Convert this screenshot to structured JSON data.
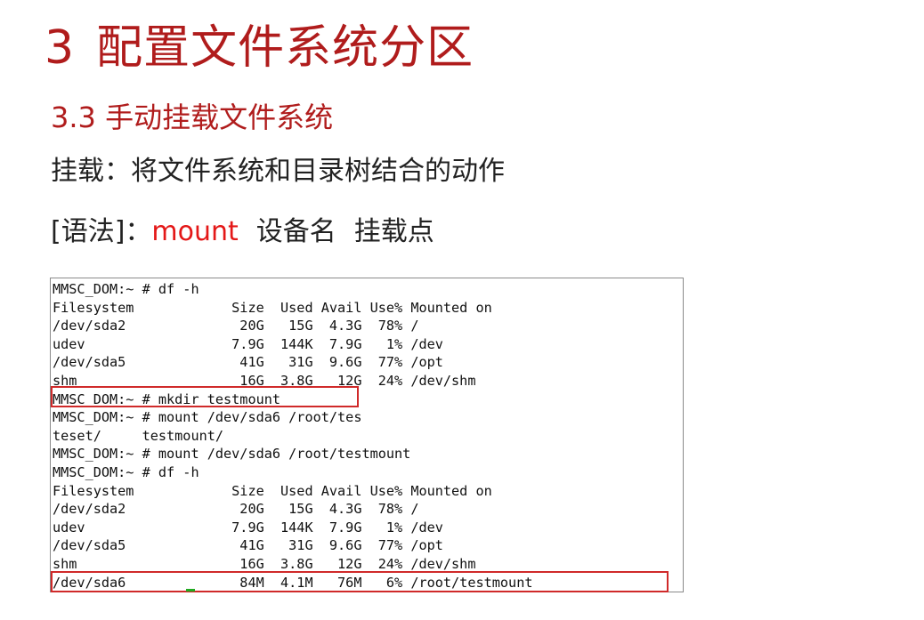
{
  "slide": {
    "section_number": "3",
    "section_title": "配置文件系统分区",
    "subsection_title": "3.3 手动挂载文件系统",
    "definition": "挂载：将文件系统和目录树结合的动作",
    "syntax": {
      "label": "[语法]：",
      "command": "mount",
      "arg1": "设备名",
      "arg2": "挂载点"
    },
    "terminal": {
      "lines": [
        "MMSC_DOM:~ # df -h",
        "Filesystem            Size  Used Avail Use% Mounted on",
        "/dev/sda2              20G   15G  4.3G  78% /",
        "udev                  7.9G  144K  7.9G   1% /dev",
        "/dev/sda5              41G   31G  9.6G  77% /opt",
        "shm                    16G  3.8G   12G  24% /dev/shm",
        "MMSC_DOM:~ # mkdir testmount",
        "MMSC_DOM:~ # mount /dev/sda6 /root/tes",
        "teset/     testmount/",
        "MMSC_DOM:~ # mount /dev/sda6 /root/testmount",
        "MMSC_DOM:~ # df -h",
        "Filesystem            Size  Used Avail Use% Mounted on",
        "/dev/sda2              20G   15G  4.3G  78% /",
        "udev                  7.9G  144K  7.9G   1% /dev",
        "/dev/sda5              41G   31G  9.6G  77% /opt",
        "shm                    16G  3.8G   12G  24% /dev/shm",
        "/dev/sda6              84M  4.1M   76M   6% /root/testmount"
      ],
      "highlight_color": "#d02a2a"
    },
    "colors": {
      "title": "#b01c1c",
      "command": "#e41818",
      "text": "#222222"
    }
  }
}
